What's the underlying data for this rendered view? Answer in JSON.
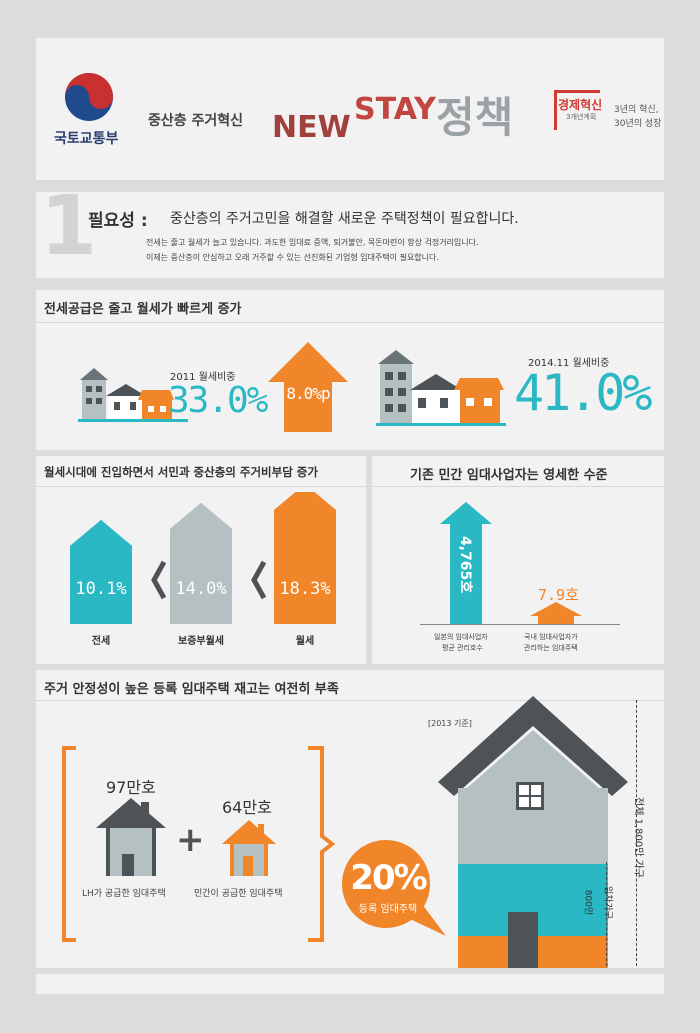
{
  "header": {
    "ministry": "국토교통부",
    "subtitle": "중산층 주거혁신",
    "title_new": "NEW",
    "title_stay": "STAY",
    "title_policy": "정책",
    "badge_main": "경제혁신",
    "badge_sub": "3개년계획",
    "slogan_line1": "3년의 혁신,",
    "slogan_line2": "30년의 성장"
  },
  "necessity": {
    "number": "1",
    "label": "필요성 :",
    "headline": "중산층의 주거고민을 해결할 새로운 주택정책이 필요합니다.",
    "line1": "전세는 줄고 월세가 늘고 있습니다.  과도한 임대료 증액, 퇴거불안, 목돈마련이 항상 걱정거리입니다.",
    "line2": "이제는 중산층이 안심하고 오래 거주할 수 있는 선진화된 기업형 임대주택이 필요합니다."
  },
  "section_rent": {
    "title": "전세공급은 줄고 월세가 빠르게 증가",
    "left_label": "2011 월세비중",
    "left_value": "33.0%",
    "middle_value": "8.0%p",
    "right_label": "2014.11 월세비중",
    "right_value": "41.0%"
  },
  "section_burden": {
    "title": "월세시대에 진입하면서 서민과 중산층의 주거비부담 증가",
    "items": [
      {
        "value": "10.1%",
        "label": "전세",
        "color": "#2ab9c4"
      },
      {
        "value": "14.0%",
        "label": "보증부월세",
        "color": "#b4c0c2"
      },
      {
        "value": "18.3%",
        "label": "월세",
        "color": "#f0852a"
      }
    ],
    "separator": "<"
  },
  "section_private": {
    "title": "기존 민간 임대사업자는 영세한 수준",
    "japan_value": "4,765호",
    "korea_value": "7.9호",
    "japan_label_1": "일본의 임대사업자",
    "japan_label_2": "평균 관리호수",
    "korea_label_1": "국내 임대사업자가",
    "korea_label_2": "관리하는 임대주택"
  },
  "section_stock": {
    "title": "주거 안정성이 높은 등록 임대주택 재고는 여전히 부족",
    "lh_value": "97만호",
    "lh_label": "LH가 공급한 임대주택",
    "plus": "+",
    "private_value": "64만호",
    "private_label": "민간이 공급한 임대주택",
    "bubble_value": "20%",
    "bubble_label": "등록 임대주택",
    "note": "[2013 기준]",
    "total_label": "전체 1,800만 가구",
    "rent_label_1": "임차가구",
    "rent_label_2": "800만"
  },
  "colors": {
    "teal": "#2ab9c4",
    "orange": "#f0852a",
    "gray": "#b4c0c2",
    "dark": "#4d5356",
    "red": "#c0463f",
    "brown": "#a0413e"
  }
}
